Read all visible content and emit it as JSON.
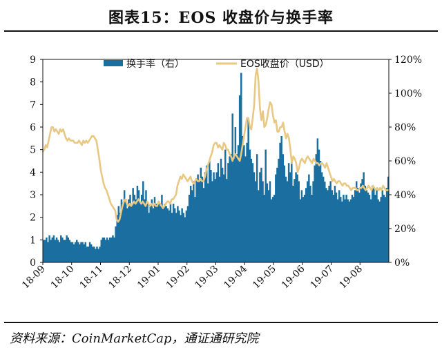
{
  "header": {
    "title": "图表15：EOS 收盘价与换手率"
  },
  "footer": {
    "source": "资料来源：CoinMarketCap，通证通研究院"
  },
  "colors": {
    "bar": "#1a6fa0",
    "line": "#e8c882"
  },
  "chart_data": {
    "type": "bar+line",
    "title": "图表15：EOS 收盘价与换手率",
    "x_tick_labels": [
      "18-09",
      "18-10",
      "18-11",
      "18-12",
      "19-01",
      "19-02",
      "19-03",
      "19-04",
      "19-05",
      "19-06",
      "19-07",
      "19-08"
    ],
    "y_left": {
      "range": [
        0,
        9
      ],
      "ticks": [
        "0",
        "1",
        "2",
        "3",
        "4",
        "5",
        "6",
        "7",
        "8",
        "9"
      ]
    },
    "y_right": {
      "range": [
        0,
        120
      ],
      "ticks": [
        "0%",
        "20%",
        "40%",
        "60%",
        "80%",
        "100%",
        "120%"
      ]
    },
    "legend": [
      "换手率（右）",
      "EOS收盘价（USD）"
    ],
    "legend_placement": "top",
    "grid": false,
    "series": [
      {
        "name": "换手率（右）",
        "kind": "bar",
        "axis": "right",
        "unit": "%",
        "values": [
          13.3,
          13.3,
          14.7,
          12.0,
          16.0,
          13.3,
          14.7,
          16.0,
          13.3,
          14.7,
          13.3,
          12.0,
          16.0,
          14.7,
          13.3,
          13.3,
          16.0,
          14.7,
          13.3,
          12.0,
          12.0,
          10.7,
          12.0,
          13.3,
          12.0,
          10.7,
          12.0,
          12.0,
          10.7,
          12.0,
          9.3,
          9.3,
          12.0,
          10.7,
          9.3,
          9.3,
          8.0,
          9.3,
          8.0,
          9.3,
          13.3,
          14.7,
          14.7,
          13.3,
          14.7,
          13.3,
          14.7,
          14.7,
          16.0,
          14.7,
          21.3,
          28.0,
          33.3,
          29.3,
          37.3,
          33.3,
          42.7,
          37.3,
          32.0,
          37.3,
          40.0,
          33.3,
          44.0,
          40.0,
          37.3,
          45.3,
          42.7,
          36.0,
          40.0,
          48.0,
          37.3,
          42.7,
          36.0,
          29.3,
          33.3,
          37.3,
          32.0,
          38.7,
          34.7,
          33.3,
          36.0,
          33.3,
          40.0,
          32.0,
          34.7,
          33.3,
          32.0,
          30.7,
          34.7,
          29.3,
          34.7,
          32.0,
          29.3,
          33.3,
          30.7,
          28.0,
          32.0,
          29.3,
          26.7,
          30.7,
          33.3,
          40.0,
          45.3,
          42.7,
          48.0,
          38.7,
          49.3,
          52.0,
          48.0,
          56.0,
          50.7,
          44.0,
          53.3,
          57.3,
          46.7,
          60.0,
          54.7,
          48.0,
          53.3,
          49.3,
          53.3,
          58.7,
          50.7,
          61.3,
          56.0,
          52.0,
          66.7,
          49.3,
          58.7,
          62.7,
          64.0,
          88.0,
          61.3,
          80.0,
          64.0,
          69.3,
          98.7,
          112.0,
          74.7,
          69.3,
          62.7,
          70.7,
          85.3,
          66.7,
          61.3,
          58.7,
          53.3,
          48.0,
          64.0,
          42.7,
          53.3,
          56.0,
          48.0,
          40.0,
          66.7,
          46.7,
          42.7,
          48.0,
          37.3,
          38.7,
          40.0,
          52.0,
          56.0,
          61.3,
          70.7,
          74.7,
          64.0,
          57.3,
          50.7,
          48.0,
          58.7,
          53.3,
          60.0,
          45.3,
          49.3,
          53.3,
          52.0,
          48.0,
          37.3,
          42.7,
          38.7,
          40.0,
          44.0,
          48.0,
          52.0,
          45.3,
          40.0,
          48.0,
          57.3,
          64.0,
          73.3,
          66.7,
          60.0,
          53.3,
          50.7,
          47.7,
          44.0,
          42.7,
          45.3,
          48.0,
          42.7,
          40.0,
          45.3,
          41.3,
          37.3,
          42.7,
          38.7,
          36.0,
          40.0,
          37.3,
          40.0,
          37.3,
          36.0,
          37.3,
          40.0,
          38.7,
          42.7,
          48.0,
          44.0,
          41.3,
          46.7,
          49.3,
          53.3,
          45.3,
          42.7,
          41.3,
          40.0,
          37.3,
          45.3,
          44.0,
          40.0,
          42.7,
          37.3,
          36.0,
          38.7,
          42.7,
          40.0,
          38.7,
          44.0,
          50.7
        ]
      },
      {
        "name": "EOS收盘价（USD）",
        "kind": "line",
        "axis": "left",
        "unit": "USD",
        "values": [
          4.9,
          5.0,
          5.2,
          5.1,
          5.4,
          5.7,
          6.0,
          6.0,
          5.8,
          5.9,
          5.8,
          5.7,
          5.9,
          5.8,
          5.9,
          5.7,
          5.5,
          5.4,
          5.5,
          5.4,
          5.4,
          5.4,
          5.3,
          5.3,
          5.3,
          5.4,
          5.3,
          5.2,
          5.4,
          5.3,
          5.4,
          5.3,
          5.4,
          5.5,
          5.6,
          5.6,
          5.5,
          5.4,
          5.0,
          4.6,
          4.1,
          3.8,
          3.5,
          3.3,
          3.2,
          3.0,
          2.8,
          2.6,
          2.5,
          2.4,
          2.3,
          1.9,
          1.8,
          1.9,
          2.2,
          2.5,
          2.7,
          2.8,
          2.6,
          2.5,
          2.6,
          2.5,
          2.6,
          2.7,
          2.6,
          2.7,
          2.8,
          2.7,
          2.6,
          2.7,
          2.6,
          2.5,
          2.7,
          2.6,
          2.5,
          2.6,
          2.5,
          2.6,
          2.5,
          2.5,
          2.7,
          2.6,
          2.5,
          2.4,
          2.5,
          2.6,
          2.7,
          2.7,
          2.6,
          2.8,
          2.8,
          2.9,
          3.0,
          3.4,
          3.6,
          3.8,
          3.7,
          3.9,
          3.8,
          3.7,
          3.6,
          3.7,
          3.8,
          3.6,
          3.5,
          3.6,
          3.7,
          3.6,
          3.6,
          3.7,
          3.6,
          3.6,
          3.8,
          4.1,
          4.3,
          4.5,
          4.7,
          4.9,
          5.2,
          5.3,
          5.3,
          5.1,
          5.2,
          5.1,
          5.0,
          5.3,
          5.2,
          5.0,
          5.0,
          4.8,
          4.7,
          4.5,
          4.7,
          4.8,
          4.7,
          4.6,
          4.5,
          4.8,
          5.2,
          5.6,
          6.0,
          6.4,
          6.4,
          6.0,
          5.9,
          6.4,
          7.0,
          8.3,
          8.6,
          8.0,
          6.8,
          6.3,
          6.7,
          6.0,
          6.1,
          6.4,
          6.8,
          7.1,
          7.0,
          6.5,
          6.2,
          6.3,
          5.8,
          5.8,
          6.0,
          6.0,
          6.2,
          5.8,
          5.5,
          5.7,
          5.5,
          5.0,
          4.4,
          4.7,
          4.6,
          4.4,
          4.0,
          4.2,
          4.5,
          4.6,
          4.5,
          4.4,
          4.6,
          4.7,
          4.6,
          4.5,
          4.4,
          4.6,
          4.5,
          4.4,
          4.4,
          4.3,
          4.4,
          4.4,
          4.3,
          4.2,
          4.4,
          4.2,
          4.0,
          3.8,
          3.6,
          3.7,
          3.6,
          3.5,
          3.6,
          3.6,
          3.5,
          3.4,
          3.5,
          3.5,
          3.4,
          3.4,
          3.3,
          3.2,
          3.3,
          3.3,
          3.3,
          3.2,
          3.2,
          3.3,
          3.3,
          3.4,
          3.3,
          3.2,
          3.3,
          3.4,
          3.3,
          3.2,
          3.4,
          3.3,
          3.2,
          3.3,
          3.2,
          3.3,
          3.2,
          3.4,
          3.3,
          3.2,
          3.2,
          3.2
        ]
      }
    ]
  }
}
